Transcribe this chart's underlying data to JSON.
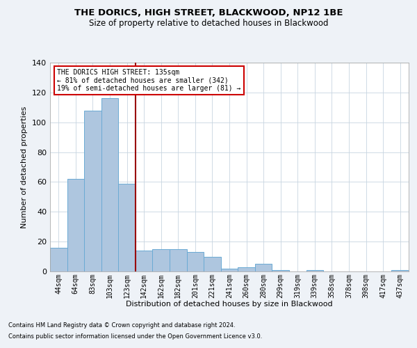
{
  "title": "THE DORICS, HIGH STREET, BLACKWOOD, NP12 1BE",
  "subtitle": "Size of property relative to detached houses in Blackwood",
  "xlabel": "Distribution of detached houses by size in Blackwood",
  "ylabel": "Number of detached properties",
  "categories": [
    "44sqm",
    "64sqm",
    "83sqm",
    "103sqm",
    "123sqm",
    "142sqm",
    "162sqm",
    "182sqm",
    "201sqm",
    "221sqm",
    "241sqm",
    "260sqm",
    "280sqm",
    "299sqm",
    "319sqm",
    "339sqm",
    "358sqm",
    "378sqm",
    "398sqm",
    "417sqm",
    "437sqm"
  ],
  "values": [
    16,
    62,
    108,
    116,
    59,
    14,
    15,
    15,
    13,
    10,
    2,
    3,
    5,
    1,
    0,
    1,
    0,
    0,
    0,
    0,
    1
  ],
  "bar_color": "#aec6df",
  "bar_edge_color": "#6aaad4",
  "vline_x": 4.5,
  "vline_color": "#990000",
  "annotation_line1": "THE DORICS HIGH STREET: 135sqm",
  "annotation_line2": "← 81% of detached houses are smaller (342)",
  "annotation_line3": "19% of semi-detached houses are larger (81) →",
  "annotation_box_color": "#ffffff",
  "annotation_box_edge": "#cc0000",
  "ylim": [
    0,
    140
  ],
  "yticks": [
    0,
    20,
    40,
    60,
    80,
    100,
    120,
    140
  ],
  "footer1": "Contains HM Land Registry data © Crown copyright and database right 2024.",
  "footer2": "Contains public sector information licensed under the Open Government Licence v3.0.",
  "bg_color": "#eef2f7",
  "plot_bg_color": "#ffffff",
  "grid_color": "#c8d4e0"
}
